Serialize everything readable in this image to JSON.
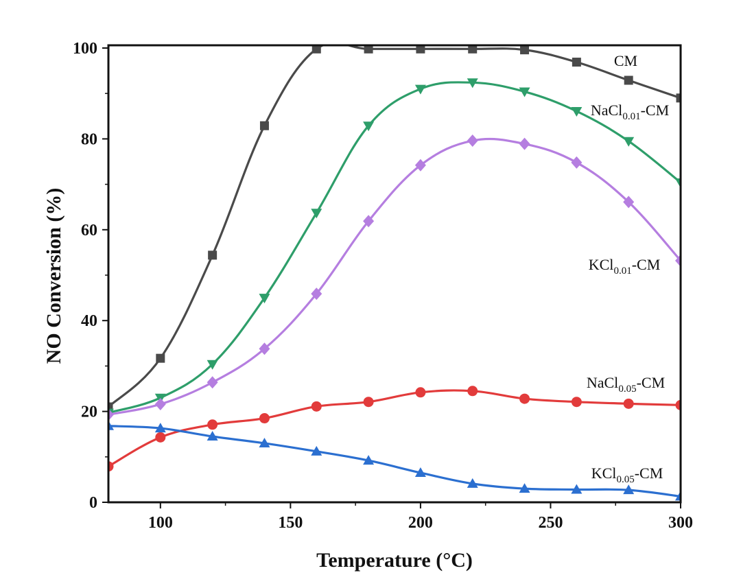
{
  "chart_data": {
    "type": "line",
    "xlabel": "Temperature (°C)",
    "ylabel": "NO Conversion (%)",
    "xlim": [
      80,
      300
    ],
    "ylim": [
      0,
      100
    ],
    "xticks": [
      100,
      150,
      200,
      250,
      300
    ],
    "yticks": [
      0,
      20,
      40,
      60,
      80,
      100
    ],
    "grid": false,
    "x": [
      80,
      100,
      120,
      140,
      160,
      180,
      200,
      220,
      240,
      260,
      280,
      300
    ],
    "series": [
      {
        "name": "CM",
        "label_main": "CM",
        "label_sub": "",
        "label_suffix": "",
        "marker": "square",
        "color": "#4a4a4a",
        "values": [
          21,
          31.7,
          54.4,
          82.9,
          99.8,
          99.8,
          99.8,
          99.8,
          99.6,
          96.9,
          92.9,
          89.0
        ]
      },
      {
        "name": "NaCl0.01-CM",
        "label_main": "NaCl",
        "label_sub": "0.01",
        "label_suffix": "-CM",
        "marker": "triangle-down",
        "color": "#2e9e6a",
        "values": [
          19.7,
          23.0,
          30.4,
          45.0,
          63.7,
          82.9,
          91.0,
          92.4,
          90.4,
          86.1,
          79.5,
          70.4
        ]
      },
      {
        "name": "KCl0.01-CM",
        "label_main": "KCl",
        "label_sub": "0.01",
        "label_suffix": "-CM",
        "marker": "diamond",
        "color": "#b57ee0",
        "values": [
          19.3,
          21.6,
          26.4,
          33.8,
          45.9,
          61.9,
          74.2,
          79.6,
          78.9,
          74.8,
          66.1,
          53.2
        ]
      },
      {
        "name": "NaCl0.05-CM",
        "label_main": "NaCl",
        "label_sub": "0.05",
        "label_suffix": "-CM",
        "marker": "circle",
        "color": "#e23b3b",
        "values": [
          7.9,
          14.3,
          17.1,
          18.5,
          21.1,
          22.1,
          24.2,
          24.5,
          22.8,
          22.1,
          21.7,
          21.4
        ]
      },
      {
        "name": "KCl0.05-CM",
        "label_main": "KCl",
        "label_sub": "0.05",
        "label_suffix": "-CM",
        "marker": "triangle-up",
        "color": "#2b6fd0",
        "values": [
          16.8,
          16.3,
          14.5,
          13.0,
          11.2,
          9.2,
          6.5,
          4.1,
          3.0,
          2.8,
          2.7,
          1.3
        ]
      }
    ]
  }
}
